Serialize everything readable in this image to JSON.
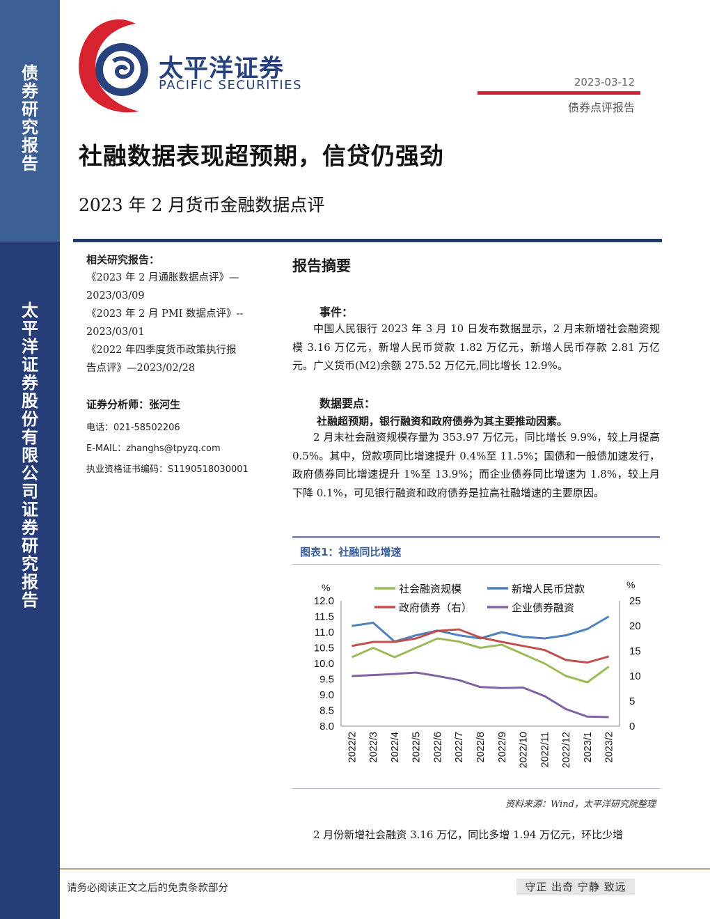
{
  "sidebar": {
    "top_text": "债券研究报告",
    "bottom_text": "太平洋证券股份有限公司证券研究报告"
  },
  "logo": {
    "cn": "太平洋证券",
    "en": "PACIFIC SECURITIES"
  },
  "header": {
    "date": "2023-03-12",
    "report_type": "债券点评报告"
  },
  "title": "社融数据表现超预期，信贷仍强劲",
  "subtitle": "2023 年 2 月货币金融数据点评",
  "left": {
    "related_heading": "相关研究报告：",
    "related_lines": [
      "《2023 年 2 月通胀数据点评》—",
      "2023/03/09",
      "《2023 年 2 月 PMI 数据点评》--",
      "2023/03/01",
      "《2022 年四季度货币政策执行报",
      "告点评》—2023/02/28"
    ],
    "analyst": "证券分析师：张河生",
    "phone": "电话：021-58502206",
    "email": "E-MAIL：zhanghs@tpyzq.com",
    "cert": "执业资格证书编码：S1190518030001"
  },
  "main": {
    "summary_heading": "报告摘要",
    "event_heading": "事件：",
    "event_text": "中国人民银行 2023 年 3 月 10 日发布数据显示，2 月末新增社会融资规模 3.16 万亿元，新增人民币贷款 1.82 万亿元，新增人民币存款 2.81 万亿元。广义货币(M2)余额 275.52 万亿元,同比增长 12.9%。",
    "points_heading": "数据要点：",
    "points_bold": "社融超预期，银行融资和政府债券为其主要推动因素。",
    "points_text": "2 月末社会融资规模存量为 353.97 万亿元，同比增长 9.9%，较上月提高 0.5%。其中，贷款项同比增速提升 0.4%至 11.5%；国债和一般债加速发行，政府债券同比增速提升 1%至 13.9%；而企业债券同比增速为 1.8%，较上月下降 0.1%，可见银行融资和政府债券是拉高社融增速的主要原因。",
    "chart_title": "图表1：社融同比增速",
    "source": "资料来源：Wind，太平洋研究院整理",
    "last_line": "2 月份新增社会融资 3.16 万亿，同比多增 1.94 万亿元，环比少增"
  },
  "footer": {
    "left": "请务必阅读正文之后的免责条款部分",
    "right": "守正 出奇 宁静 致远"
  },
  "colors": {
    "navy": "#263d77",
    "blue": "#3c5f96",
    "red": "#d7232f",
    "green": "#9bbb59",
    "lineBlue": "#4f81bd",
    "lineRed": "#c0504d",
    "purple": "#8064a2"
  },
  "chart_data": {
    "type": "line",
    "categories": [
      "2022/2",
      "2022/3",
      "2022/4",
      "2022/5",
      "2022/6",
      "2022/7",
      "2022/8",
      "2022/9",
      "2022/10",
      "2022/11",
      "2022/12",
      "2023/1",
      "2023/2"
    ],
    "left_axis": {
      "label": "%",
      "ylim": [
        8.0,
        12.0
      ],
      "ticks": [
        "12.0",
        "11.5",
        "11.0",
        "10.5",
        "10.0",
        "9.5",
        "9.0",
        "8.5",
        "8.0"
      ]
    },
    "right_axis": {
      "label": "%",
      "ylim": [
        0,
        25
      ],
      "ticks": [
        "25",
        "20",
        "15",
        "10",
        "5",
        "0"
      ]
    },
    "series": [
      {
        "name": "社会融资规模",
        "axis": "left",
        "color": "#9bbb59",
        "values": [
          10.2,
          10.5,
          10.2,
          10.5,
          10.8,
          10.7,
          10.5,
          10.6,
          10.3,
          10.0,
          9.6,
          9.4,
          9.9
        ]
      },
      {
        "name": "新增人民币贷款",
        "axis": "left",
        "color": "#4f81bd",
        "values": [
          11.2,
          11.3,
          10.7,
          10.9,
          11.05,
          10.9,
          10.8,
          11.0,
          10.85,
          10.8,
          10.9,
          11.1,
          11.5
        ]
      },
      {
        "name": "政府债券（右）",
        "axis": "right",
        "color": "#c0504d",
        "values": [
          16.0,
          16.8,
          16.8,
          17.5,
          19.0,
          19.3,
          17.7,
          16.8,
          16.0,
          15.2,
          13.2,
          12.7,
          13.9
        ]
      },
      {
        "name": "企业债券融资",
        "axis": "right",
        "color": "#8064a2",
        "values": [
          10.0,
          10.2,
          10.4,
          10.7,
          10.0,
          9.2,
          7.8,
          7.6,
          7.7,
          6.0,
          3.4,
          1.9,
          1.8
        ]
      }
    ]
  }
}
